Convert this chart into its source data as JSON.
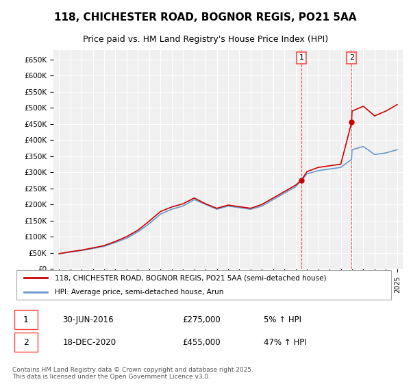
{
  "title_line1": "118, CHICHESTER ROAD, BOGNOR REGIS, PO21 5AA",
  "title_line2": "Price paid vs. HM Land Registry's House Price Index (HPI)",
  "ylabel": "",
  "xlabel": "",
  "ylim": [
    0,
    680000
  ],
  "yticks": [
    0,
    50000,
    100000,
    150000,
    200000,
    250000,
    300000,
    350000,
    400000,
    450000,
    500000,
    550000,
    600000,
    650000
  ],
  "ytick_labels": [
    "£0",
    "£50K",
    "£100K",
    "£150K",
    "£200K",
    "£250K",
    "£300K",
    "£350K",
    "£400K",
    "£450K",
    "£500K",
    "£550K",
    "£600K",
    "£650K"
  ],
  "background_color": "#ffffff",
  "plot_bg_color": "#f0f0f0",
  "grid_color": "#ffffff",
  "sale1_date": 2016.5,
  "sale1_price": 275000,
  "sale1_label": "1",
  "sale2_date": 2020.96,
  "sale2_price": 455000,
  "sale2_label": "2",
  "sale1_info": "30-JUN-2016          £275,000          5% ↑ HPI",
  "sale2_info": "18-DEC-2020          £455,000          47% ↑ HPI",
  "legend_label_red": "118, CHICHESTER ROAD, BOGNOR REGIS, PO21 5AA (semi-detached house)",
  "legend_label_blue": "HPI: Average price, semi-detached house, Arun",
  "footnote": "Contains HM Land Registry data © Crown copyright and database right 2025.\nThis data is licensed under the Open Government Licence v3.0.",
  "red_color": "#cc0000",
  "blue_color": "#6699cc",
  "dashed_red": "#ff4444",
  "hpi_years": [
    1995,
    1996,
    1997,
    1998,
    1999,
    2000,
    2001,
    2002,
    2003,
    2004,
    2005,
    2006,
    2007,
    2008,
    2009,
    2010,
    2011,
    2012,
    2013,
    2014,
    2015,
    2016,
    2016.5,
    2017,
    2018,
    2019,
    2020,
    2020.96,
    2021,
    2022,
    2023,
    2024,
    2025
  ],
  "hpi_values": [
    47000,
    52000,
    57000,
    63000,
    70000,
    82000,
    95000,
    115000,
    140000,
    170000,
    185000,
    195000,
    215000,
    200000,
    185000,
    195000,
    190000,
    185000,
    195000,
    215000,
    235000,
    255000,
    275000,
    295000,
    305000,
    310000,
    315000,
    340000,
    370000,
    380000,
    355000,
    360000,
    370000
  ],
  "price_years": [
    1995,
    1996,
    1997,
    1998,
    1999,
    2000,
    2001,
    2002,
    2003,
    2004,
    2005,
    2006,
    2007,
    2008,
    2009,
    2010,
    2011,
    2012,
    2013,
    2014,
    2015,
    2016,
    2016.5,
    2017,
    2018,
    2019,
    2020,
    2020.96,
    2021,
    2022,
    2023,
    2024,
    2025
  ],
  "price_values": [
    47000,
    53000,
    58000,
    65000,
    72000,
    85000,
    100000,
    120000,
    148000,
    178000,
    192000,
    202000,
    220000,
    202000,
    188000,
    198000,
    193000,
    188000,
    200000,
    220000,
    240000,
    260000,
    275000,
    302000,
    315000,
    320000,
    325000,
    455000,
    490000,
    505000,
    475000,
    490000,
    510000
  ]
}
